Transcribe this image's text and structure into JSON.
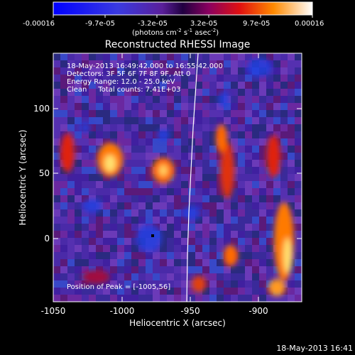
{
  "colorbar": {
    "tick_labels": [
      "-0.00016",
      "-9.7e-05",
      "-3.2e-05",
      "3.2e-05",
      "9.7e-05",
      "0.00016"
    ],
    "units_main": "(photons cm",
    "units_exp1": "-2",
    "units_mid": " s",
    "units_exp2": "-1",
    "units_end": " asec",
    "units_exp3": "-2",
    "units_close": ")"
  },
  "title": "Reconstructed RHESSI Image",
  "info": {
    "time_range": "18-May-2013 16:49:42.000 to 16:55:42.000",
    "detectors": "Detectors: 3F 5F 6F 7F 8F 9F, Att 0",
    "energy": "Energy Range: 12.0 - 25.0 keV",
    "clean": "Clean     Total counts: 7.41E+03",
    "peak": "Position of Peak = [-1005,56]"
  },
  "axes": {
    "xlabel": "Heliocentric X (arcsec)",
    "ylabel": "Heliocentric Y (arcsec)",
    "x_ticks": [
      "-1050",
      "-1000",
      "-950",
      "-900"
    ],
    "y_ticks": [
      "100",
      "50",
      "0"
    ]
  },
  "timestamp": "18-May-2013 16:41",
  "colors": {
    "background": "#000000",
    "limb_line": "#ffffff"
  }
}
